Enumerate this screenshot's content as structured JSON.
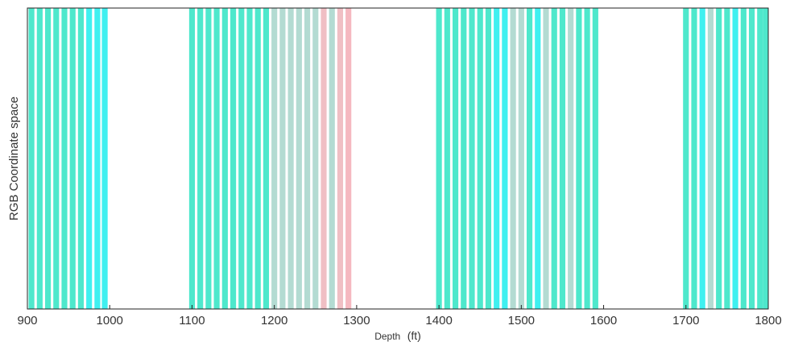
{
  "chart_data": {
    "type": "bar",
    "xlabel": "Depth",
    "xlabel_unit": "(ft)",
    "ylabel": "RGB Coordinate space",
    "xlim": [
      900,
      1800
    ],
    "xticks": [
      900,
      1000,
      1100,
      1200,
      1300,
      1400,
      1500,
      1600,
      1700,
      1800
    ],
    "grid": false,
    "bar_width": 7,
    "bars": [
      {
        "x": 905,
        "color": "#4ee8cc"
      },
      {
        "x": 915,
        "color": "#4ee8cc"
      },
      {
        "x": 925,
        "color": "#4ee8cc"
      },
      {
        "x": 935,
        "color": "#4ee8cc"
      },
      {
        "x": 945,
        "color": "#4ee8cc"
      },
      {
        "x": 955,
        "color": "#4ee8cc"
      },
      {
        "x": 965,
        "color": "#4ee8cc"
      },
      {
        "x": 975,
        "color": "#3ff0f0"
      },
      {
        "x": 985,
        "color": "#3ff0f0"
      },
      {
        "x": 994,
        "color": "#3ff0f0"
      },
      {
        "x": 1100,
        "color": "#4ee8cc"
      },
      {
        "x": 1110,
        "color": "#4ee8cc"
      },
      {
        "x": 1120,
        "color": "#4ee8cc"
      },
      {
        "x": 1130,
        "color": "#4ee8cc"
      },
      {
        "x": 1140,
        "color": "#4ee8cc"
      },
      {
        "x": 1150,
        "color": "#4ee8cc"
      },
      {
        "x": 1160,
        "color": "#4ee8cc"
      },
      {
        "x": 1170,
        "color": "#4ee8cc"
      },
      {
        "x": 1180,
        "color": "#4ee8cc"
      },
      {
        "x": 1190,
        "color": "#4ee8cc"
      },
      {
        "x": 1200,
        "color": "#b3dbd2"
      },
      {
        "x": 1210,
        "color": "#b3dbd2"
      },
      {
        "x": 1220,
        "color": "#b3dbd2"
      },
      {
        "x": 1230,
        "color": "#b3dbd2"
      },
      {
        "x": 1240,
        "color": "#b3dbd2"
      },
      {
        "x": 1250,
        "color": "#b3dbd2"
      },
      {
        "x": 1260,
        "color": "#f0bfc4"
      },
      {
        "x": 1270,
        "color": "#b3dbd2"
      },
      {
        "x": 1280,
        "color": "#f0bfc4"
      },
      {
        "x": 1290,
        "color": "#f5b8c0"
      },
      {
        "x": 1400,
        "color": "#4ee8cc"
      },
      {
        "x": 1410,
        "color": "#4ee8cc"
      },
      {
        "x": 1420,
        "color": "#4ee8cc"
      },
      {
        "x": 1430,
        "color": "#4ee8cc"
      },
      {
        "x": 1440,
        "color": "#4ee8cc"
      },
      {
        "x": 1450,
        "color": "#4ee8cc"
      },
      {
        "x": 1460,
        "color": "#4ee8cc"
      },
      {
        "x": 1470,
        "color": "#3ff0f0"
      },
      {
        "x": 1480,
        "color": "#3ff0f0"
      },
      {
        "x": 1490,
        "color": "#b3dbd2"
      },
      {
        "x": 1500,
        "color": "#b3dbd2"
      },
      {
        "x": 1510,
        "color": "#4ee8cc"
      },
      {
        "x": 1520,
        "color": "#3ff0f0"
      },
      {
        "x": 1530,
        "color": "#b3dbd2"
      },
      {
        "x": 1540,
        "color": "#4ee8cc"
      },
      {
        "x": 1550,
        "color": "#4ee8cc"
      },
      {
        "x": 1560,
        "color": "#b3dbd2"
      },
      {
        "x": 1570,
        "color": "#4ee8cc"
      },
      {
        "x": 1580,
        "color": "#4ee8cc"
      },
      {
        "x": 1590,
        "color": "#4ee8cc"
      },
      {
        "x": 1700,
        "color": "#4ee8cc"
      },
      {
        "x": 1710,
        "color": "#4ee8cc"
      },
      {
        "x": 1720,
        "color": "#3ff0f0"
      },
      {
        "x": 1730,
        "color": "#b3dbd2"
      },
      {
        "x": 1740,
        "color": "#4ee8cc"
      },
      {
        "x": 1750,
        "color": "#4ee8cc"
      },
      {
        "x": 1760,
        "color": "#3ff0f0"
      },
      {
        "x": 1770,
        "color": "#4ee8cc"
      },
      {
        "x": 1780,
        "color": "#4ee8cc"
      },
      {
        "x": 1790,
        "color": "#4ee8cc"
      },
      {
        "x": 1797,
        "color": "#4ee8cc"
      }
    ]
  }
}
